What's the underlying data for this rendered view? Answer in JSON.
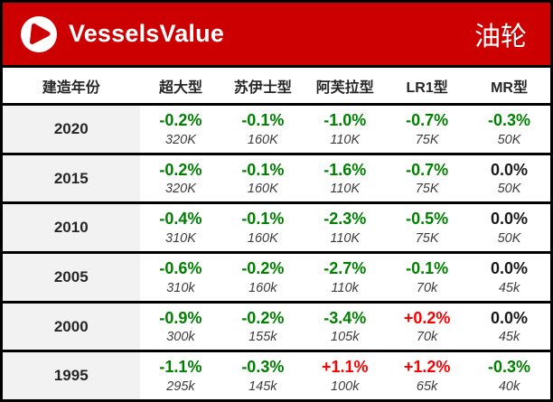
{
  "brand": {
    "logo_icon": "vesselsvalue-logo-icon",
    "logo_text": "VesselsValue",
    "title": "油轮"
  },
  "colors": {
    "brand_red": "#cc0000",
    "negative_green": "#008000",
    "positive_red": "#ff0000",
    "neutral_black": "#1a1a1a",
    "year_cell_bg": "#f2f2f2",
    "border_black": "#000000"
  },
  "table": {
    "year_header": "建造年份",
    "columns": [
      "超大型",
      "苏伊士型",
      "阿芙拉型",
      "LR1型",
      "MR型"
    ],
    "rows": [
      {
        "year": "2020",
        "cells": [
          {
            "pct": "-0.2%",
            "value": "320K"
          },
          {
            "pct": "-0.1%",
            "value": "160K"
          },
          {
            "pct": "-1.0%",
            "value": "110K"
          },
          {
            "pct": "-0.7%",
            "value": "75K"
          },
          {
            "pct": "-0.3%",
            "value": "50K"
          }
        ]
      },
      {
        "year": "2015",
        "cells": [
          {
            "pct": "-0.2%",
            "value": "320K"
          },
          {
            "pct": "-0.1%",
            "value": "160K"
          },
          {
            "pct": "-1.6%",
            "value": "110K"
          },
          {
            "pct": "-0.7%",
            "value": "75K"
          },
          {
            "pct": "0.0%",
            "value": "50K"
          }
        ]
      },
      {
        "year": "2010",
        "cells": [
          {
            "pct": "-0.4%",
            "value": "310K"
          },
          {
            "pct": "-0.1%",
            "value": "160K"
          },
          {
            "pct": "-2.3%",
            "value": "110K"
          },
          {
            "pct": "-0.5%",
            "value": "75K"
          },
          {
            "pct": "0.0%",
            "value": "50K"
          }
        ]
      },
      {
        "year": "2005",
        "cells": [
          {
            "pct": "-0.6%",
            "value": "310k"
          },
          {
            "pct": "-0.2%",
            "value": "160k"
          },
          {
            "pct": "-2.7%",
            "value": "110k"
          },
          {
            "pct": "-0.1%",
            "value": "70k"
          },
          {
            "pct": "0.0%",
            "value": "45k"
          }
        ]
      },
      {
        "year": "2000",
        "cells": [
          {
            "pct": "-0.9%",
            "value": "300k"
          },
          {
            "pct": "-0.2%",
            "value": "155k"
          },
          {
            "pct": "-3.4%",
            "value": "105k"
          },
          {
            "pct": "+0.2%",
            "value": "70k"
          },
          {
            "pct": "0.0%",
            "value": "45k"
          }
        ]
      },
      {
        "year": "1995",
        "cells": [
          {
            "pct": "-1.1%",
            "value": "295k"
          },
          {
            "pct": "-0.3%",
            "value": "145k"
          },
          {
            "pct": "+1.1%",
            "value": "100k"
          },
          {
            "pct": "+1.2%",
            "value": "65k"
          },
          {
            "pct": "-0.3%",
            "value": "40k"
          }
        ]
      }
    ]
  },
  "chart_data": {
    "type": "table",
    "title": "油轮",
    "row_label": "建造年份",
    "columns": [
      "超大型",
      "苏伊士型",
      "阿芙拉型",
      "LR1型",
      "MR型"
    ],
    "rows": [
      "2020",
      "2015",
      "2010",
      "2005",
      "2000",
      "1995"
    ],
    "pct_change": [
      [
        -0.2,
        -0.1,
        -1.0,
        -0.7,
        -0.3
      ],
      [
        -0.2,
        -0.1,
        -1.6,
        -0.7,
        0.0
      ],
      [
        -0.4,
        -0.1,
        -2.3,
        -0.5,
        0.0
      ],
      [
        -0.6,
        -0.2,
        -2.7,
        -0.1,
        0.0
      ],
      [
        -0.9,
        -0.2,
        -3.4,
        0.2,
        0.0
      ],
      [
        -1.1,
        -0.3,
        1.1,
        1.2,
        -0.3
      ]
    ],
    "values": [
      [
        "320K",
        "160K",
        "110K",
        "75K",
        "50K"
      ],
      [
        "320K",
        "160K",
        "110K",
        "75K",
        "50K"
      ],
      [
        "310K",
        "160K",
        "110K",
        "75K",
        "50K"
      ],
      [
        "310k",
        "160k",
        "110k",
        "70k",
        "45k"
      ],
      [
        "300k",
        "155k",
        "105k",
        "70k",
        "45k"
      ],
      [
        "295k",
        "145k",
        "100k",
        "65k",
        "40k"
      ]
    ],
    "color_rule": "negative=green, positive=red, zero=black"
  }
}
